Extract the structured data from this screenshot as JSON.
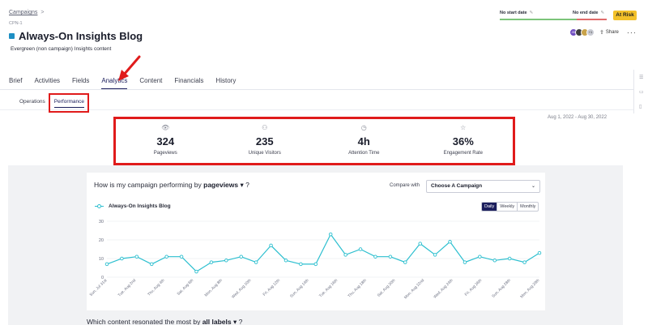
{
  "breadcrumb": {
    "parent": "Campaigns",
    "separator": ">"
  },
  "campaign_id": "CPN-1",
  "title": "Always-On Insights Blog",
  "description": "Evergreen (non campaign) Insights content",
  "dates": {
    "start": "No start date",
    "end": "No end date"
  },
  "status_badge": "At Risk",
  "share": {
    "label": "Share",
    "avatars": [
      "JD",
      "",
      "",
      "+1"
    ]
  },
  "colors": {
    "brand": "#1b1e5c",
    "accent": "#2cbfcf",
    "risk": "#f3c12a",
    "highlight": "#e01b1b"
  },
  "tabs": [
    {
      "label": "Brief"
    },
    {
      "label": "Activities"
    },
    {
      "label": "Fields"
    },
    {
      "label": "Analytics"
    },
    {
      "label": "Content"
    },
    {
      "label": "Financials"
    },
    {
      "label": "History"
    }
  ],
  "subtabs": [
    {
      "label": "Operations"
    },
    {
      "label": "Performance"
    }
  ],
  "date_range": "Aug 1, 2022 - Aug 30, 2022",
  "metrics": [
    {
      "icon": "eye-icon",
      "value": "324",
      "label": "Pageviews"
    },
    {
      "icon": "users-icon",
      "value": "235",
      "label": "Unique Visitors"
    },
    {
      "icon": "clock-icon",
      "value": "4h",
      "label": "Attention Time"
    },
    {
      "icon": "star-icon",
      "value": "36%",
      "label": "Engagement Rate"
    }
  ],
  "performance": {
    "question_prefix": "How is my campaign performing by",
    "metric": "pageviews",
    "question_suffix": "?",
    "compare_label": "Compare with",
    "compare_value": "Choose A Campaign",
    "granularity": [
      "Daily",
      "Weekly",
      "Monthly"
    ],
    "selected_granularity": "Daily"
  },
  "labels_question": {
    "prefix": "Which content resonated the most by",
    "label": "all labels",
    "suffix": "?"
  },
  "chart_data": {
    "type": "line",
    "series": [
      {
        "name": "Always-On Insights Blog",
        "values": [
          7,
          10,
          11,
          7,
          11,
          11,
          3,
          8,
          9,
          11,
          8,
          17,
          9,
          7,
          7,
          23,
          12,
          15,
          11,
          11,
          8,
          18,
          12,
          19,
          8,
          11,
          9,
          10,
          8,
          13
        ]
      }
    ],
    "x_tick_labels": [
      "Sun, Jul 31st",
      "Tue, Aug 2nd",
      "Thu, Aug 4th",
      "Sat, Aug 6th",
      "Mon, Aug 8th",
      "Wed, Aug 10th",
      "Fri, Aug 12th",
      "Sun, Aug 14th",
      "Tue, Aug 16th",
      "Thu, Aug 18th",
      "Sat, Aug 20th",
      "Mon, Aug 22nd",
      "Wed, Aug 24th",
      "Fri, Aug 26th",
      "Sun, Aug 28th",
      "Mon, Aug 29th"
    ],
    "y_ticks": [
      0,
      10,
      20,
      30
    ],
    "ylim": [
      0,
      30
    ],
    "grid": true,
    "legend": "top-left"
  }
}
